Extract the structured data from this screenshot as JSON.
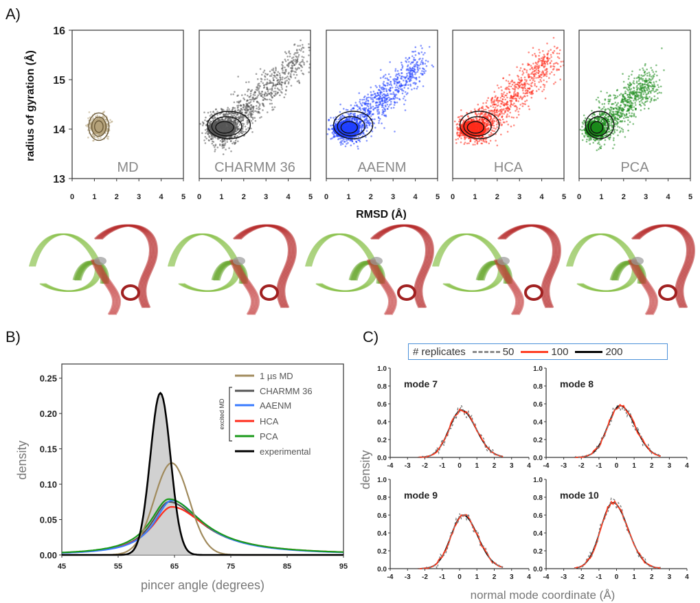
{
  "panel_labels": {
    "a": "A)",
    "b": "B)",
    "c": "C)"
  },
  "panel_a": {
    "ylabel": "radius of gyration (Å)",
    "xlabel": "RMSD (Å)",
    "xlim": [
      0,
      5
    ],
    "ylim": [
      13,
      16
    ],
    "xticks": [
      0,
      1,
      2,
      3,
      4,
      5
    ],
    "yticks": [
      13,
      14,
      15,
      16
    ],
    "subplots": [
      {
        "label": "MD",
        "color": "#b5a27a",
        "center": [
          1.2,
          14.05
        ],
        "spread_x": 0.35,
        "spread_y": 0.1,
        "tail": 0.3
      },
      {
        "label": "CHARMM 36",
        "color": "#555555",
        "center": [
          1.0,
          14.0
        ],
        "spread_x": 0.6,
        "spread_y": 0.15,
        "tail": 3.6
      },
      {
        "label": "AAENM",
        "color": "#1f3fff",
        "center": [
          0.9,
          14.0
        ],
        "spread_x": 0.55,
        "spread_y": 0.12,
        "tail": 3.2
      },
      {
        "label": "HCA",
        "color": "#ff2a1a",
        "center": [
          0.9,
          14.0
        ],
        "spread_x": 0.55,
        "spread_y": 0.12,
        "tail": 3.5
      },
      {
        "label": "PCA",
        "color": "#1a8a1a",
        "center": [
          0.7,
          14.0
        ],
        "spread_x": 0.4,
        "spread_y": 0.1,
        "tail": 2.5
      }
    ]
  },
  "panel_b": {
    "ylabel": "density",
    "xlabel": "pincer angle (degrees)",
    "xlim": [
      45,
      95
    ],
    "ylim": [
      0,
      0.27
    ],
    "xticks": [
      45,
      55,
      65,
      75,
      85,
      95
    ],
    "yticks": [
      "0.00",
      "0.05",
      "0.10",
      "0.15",
      "0.20",
      "0.25"
    ],
    "bracket_label": "excited MD",
    "legend": [
      {
        "name": "1 µs MD",
        "color": "#a08a5c"
      },
      {
        "name": "CHARMM 36",
        "color": "#555555"
      },
      {
        "name": "AAENM",
        "color": "#3a7bff"
      },
      {
        "name": "HCA",
        "color": "#ff2a1a"
      },
      {
        "name": "PCA",
        "color": "#1a9a1a"
      },
      {
        "name": "experimental",
        "color": "#000000"
      }
    ]
  },
  "panel_c": {
    "ylabel": "density",
    "xlabel": "normal mode coordinate (Å)",
    "xlim": [
      -4,
      4
    ],
    "ylim": [
      0,
      1.0
    ],
    "xticks": [
      -4,
      -3,
      -2,
      -1,
      0,
      1,
      2,
      3,
      4
    ],
    "yticks": [
      "0.0",
      "0.2",
      "0.4",
      "0.6",
      "0.8",
      "1.0"
    ],
    "legend_title": "# replicates",
    "legend": [
      {
        "name": "50",
        "color": "#888888",
        "dash": true
      },
      {
        "name": "100",
        "color": "#ff3b1f",
        "dash": false
      },
      {
        "name": "200",
        "color": "#000000",
        "dash": false
      }
    ],
    "modes": [
      {
        "label": "mode 7",
        "peak": 0.53,
        "mu": 0.1
      },
      {
        "label": "mode 8",
        "peak": 0.58,
        "mu": 0.2
      },
      {
        "label": "mode 9",
        "peak": 0.6,
        "mu": 0.2
      },
      {
        "label": "mode 10",
        "peak": 0.74,
        "mu": -0.2
      }
    ]
  },
  "chart_data": [
    {
      "type": "scatter",
      "title": "",
      "xlabel": "RMSD (Å)",
      "ylabel": "radius of gyration (Å)",
      "xlim": [
        0,
        5
      ],
      "ylim": [
        13,
        16
      ],
      "series": [
        {
          "name": "MD",
          "x_range": [
            0.6,
            2.6
          ],
          "y_range": [
            13.8,
            14.4
          ],
          "density_peak": [
            1.2,
            14.05
          ]
        },
        {
          "name": "CHARMM 36",
          "x_range": [
            0.3,
            4.9
          ],
          "y_range": [
            13.6,
            15.7
          ],
          "density_peak": [
            1.0,
            14.0
          ]
        },
        {
          "name": "AAENM",
          "x_range": [
            0.3,
            4.4
          ],
          "y_range": [
            13.7,
            15.3
          ],
          "density_peak": [
            0.9,
            14.0
          ]
        },
        {
          "name": "HCA",
          "x_range": [
            0.3,
            4.9
          ],
          "y_range": [
            13.6,
            15.6
          ],
          "density_peak": [
            0.9,
            14.0
          ]
        },
        {
          "name": "PCA",
          "x_range": [
            0.2,
            3.4
          ],
          "y_range": [
            13.7,
            15.4
          ],
          "density_peak": [
            0.7,
            14.0
          ]
        }
      ]
    },
    {
      "type": "line",
      "title": "",
      "xlabel": "pincer angle (degrees)",
      "ylabel": "density",
      "xlim": [
        45,
        95
      ],
      "ylim": [
        0,
        0.27
      ],
      "series": [
        {
          "name": "experimental",
          "peak_x": 62.5,
          "peak_y": 0.229,
          "sigma": 1.8,
          "filled": true
        },
        {
          "name": "1 µs MD",
          "peak_x": 64.5,
          "peak_y": 0.13,
          "sigma": 3.1
        },
        {
          "name": "CHARMM 36",
          "peak_x": 64.0,
          "peak_y": 0.075,
          "sigma_left": 4.5,
          "sigma_right": 8.5
        },
        {
          "name": "AAENM",
          "peak_x": 64.5,
          "peak_y": 0.077,
          "sigma_left": 4.5,
          "sigma_right": 8.0
        },
        {
          "name": "HCA",
          "peak_x": 64.5,
          "peak_y": 0.068,
          "sigma_left": 5.0,
          "sigma_right": 9.0
        },
        {
          "name": "PCA",
          "peak_x": 64.0,
          "peak_y": 0.079,
          "sigma_left": 4.8,
          "sigma_right": 8.5
        }
      ]
    },
    {
      "type": "line",
      "title": "",
      "xlabel": "normal mode coordinate (Å)",
      "ylabel": "density",
      "xlim": [
        -4,
        4
      ],
      "ylim": [
        0,
        1.0
      ],
      "series": [
        {
          "name": "mode 7",
          "peak": 0.53
        },
        {
          "name": "mode 8",
          "peak": 0.58
        },
        {
          "name": "mode 9",
          "peak": 0.6
        },
        {
          "name": "mode 10",
          "peak": 0.74
        }
      ]
    }
  ]
}
